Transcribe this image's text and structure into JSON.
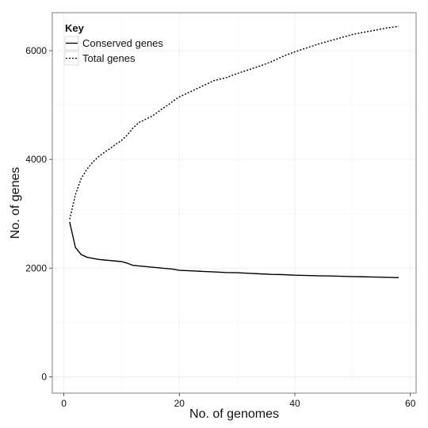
{
  "chart_data": {
    "type": "line",
    "xlabel": "No. of genomes",
    "ylabel": "No. of genes",
    "xlim": [
      -2,
      61
    ],
    "ylim": [
      -300,
      6700
    ],
    "x_ticks": [
      0,
      20,
      40,
      60
    ],
    "y_ticks": [
      0,
      2000,
      4000,
      6000
    ],
    "x_tick_labels": [
      "0",
      "20",
      "40",
      "60"
    ],
    "y_tick_labels": [
      "0",
      "2000",
      "4000",
      "6000"
    ],
    "grid": true,
    "legend": {
      "title": "Key",
      "position": "top-left"
    },
    "series": [
      {
        "name": "Conserved genes",
        "line_style": "solid",
        "color": "#000000",
        "x": [
          1,
          2,
          3,
          4,
          5,
          6,
          7,
          8,
          9,
          10,
          11,
          12,
          13,
          14,
          15,
          16,
          17,
          18,
          19,
          20,
          22,
          24,
          26,
          28,
          30,
          32,
          34,
          36,
          38,
          40,
          42,
          44,
          46,
          48,
          50,
          52,
          54,
          56,
          58
        ],
        "y": [
          2850,
          2380,
          2250,
          2200,
          2180,
          2160,
          2150,
          2140,
          2130,
          2120,
          2090,
          2050,
          2040,
          2030,
          2020,
          2010,
          2000,
          1990,
          1980,
          1960,
          1950,
          1940,
          1930,
          1920,
          1915,
          1905,
          1895,
          1885,
          1880,
          1870,
          1865,
          1860,
          1855,
          1850,
          1845,
          1840,
          1835,
          1830,
          1825
        ]
      },
      {
        "name": "Total genes",
        "line_style": "dotted",
        "color": "#000000",
        "x": [
          1,
          2,
          3,
          4,
          5,
          6,
          7,
          8,
          9,
          10,
          11,
          12,
          13,
          14,
          15,
          16,
          17,
          18,
          19,
          20,
          22,
          24,
          26,
          28,
          30,
          32,
          34,
          36,
          38,
          40,
          42,
          44,
          46,
          48,
          50,
          52,
          54,
          56,
          58
        ],
        "y": [
          2900,
          3350,
          3650,
          3820,
          3950,
          4050,
          4130,
          4200,
          4280,
          4350,
          4450,
          4580,
          4680,
          4730,
          4780,
          4850,
          4930,
          5000,
          5080,
          5150,
          5250,
          5350,
          5450,
          5500,
          5580,
          5650,
          5720,
          5800,
          5900,
          5980,
          6050,
          6120,
          6180,
          6240,
          6300,
          6340,
          6380,
          6420,
          6450
        ]
      }
    ]
  }
}
